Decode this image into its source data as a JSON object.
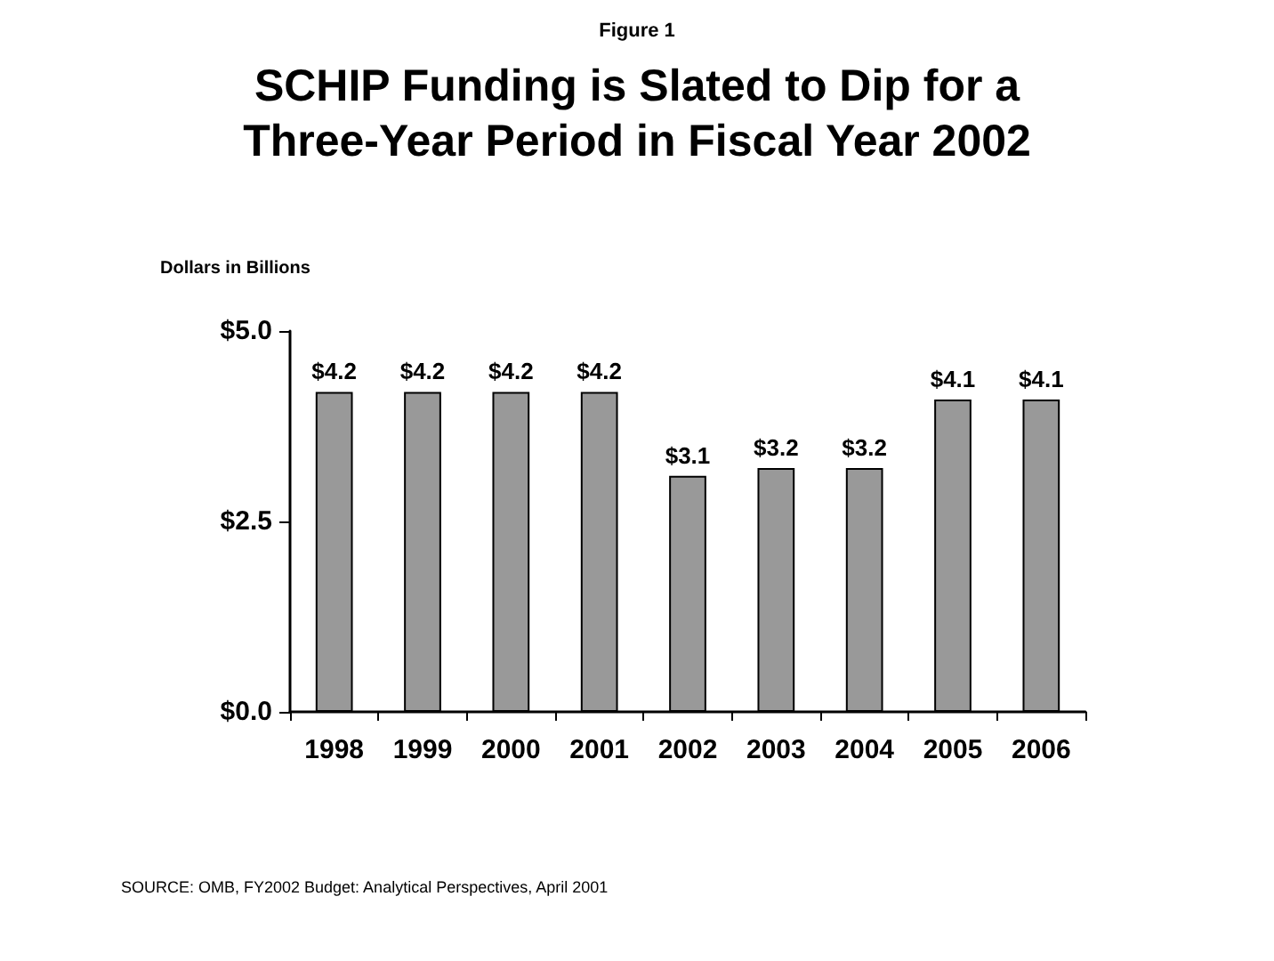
{
  "chart_data": {
    "type": "bar",
    "title": "SCHIP Funding is Slated to Dip for a\nThree-Year Period in Fiscal Year 2002",
    "subtitle": "Figure 1",
    "ylabel": "Dollars in Billions",
    "categories": [
      "1998",
      "1999",
      "2000",
      "2001",
      "2002",
      "2003",
      "2004",
      "2005",
      "2006"
    ],
    "values": [
      4.2,
      4.2,
      4.2,
      4.2,
      3.1,
      3.2,
      3.2,
      4.1,
      4.1
    ],
    "value_labels": [
      "$4.2",
      "$4.2",
      "$4.2",
      "$4.2",
      "$3.1",
      "$3.2",
      "$3.2",
      "$4.1",
      "$4.1"
    ],
    "color": "#999999",
    "ylim": [
      0,
      5
    ],
    "yticks": [
      {
        "value": 0,
        "label": "$0.0"
      },
      {
        "value": 2.5,
        "label": "$2.5"
      },
      {
        "value": 5,
        "label": "$5.0"
      }
    ],
    "grid": false,
    "annotations": [
      "SOURCE: OMB, FY2002 Budget: Analytical Perspectives, April 2001"
    ]
  }
}
